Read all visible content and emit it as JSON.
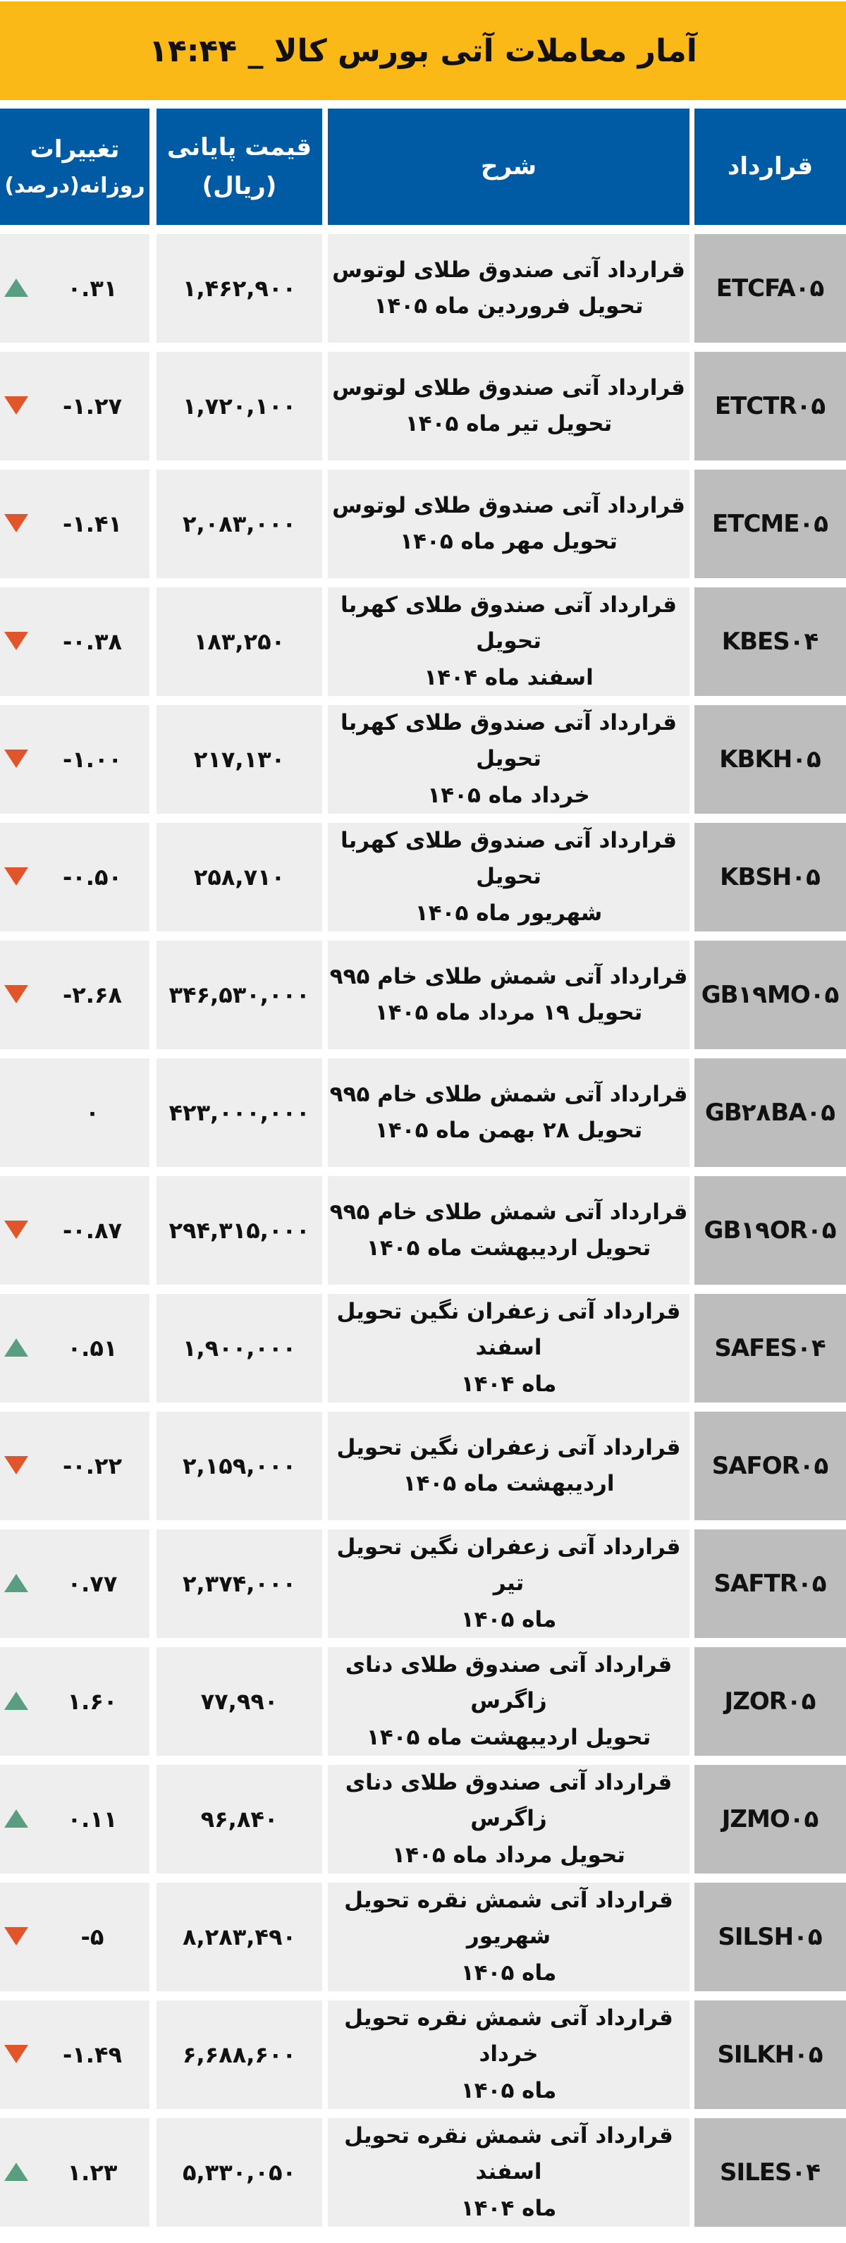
{
  "title": "آمار معاملات آتی بورس کالا _ ۱۴:۴۴",
  "colors": {
    "title_bg": "#FBB917",
    "header_bg": "#005BA4",
    "cell_bg": "#EEEEEE",
    "contract_bg": "#BDBDBD",
    "up": "#5A9E82",
    "down": "#E0562A"
  },
  "headers": {
    "contract": "قرارداد",
    "description": "شرح",
    "price": [
      "قیمت پایانی",
      "(ریال)"
    ],
    "change": [
      "تغییرات",
      "روزانه(درصد)"
    ]
  },
  "rows": [
    {
      "contract": "ETCFA۰۵",
      "desc": [
        "قرارداد آتی صندوق طلای لوتوس",
        "تحویل فروردین ماه ۱۴۰۵"
      ],
      "price": "۱,۴۶۲,۹۰۰",
      "change": "۰.۳۱",
      "trend": "up"
    },
    {
      "contract": "ETCTR۰۵",
      "desc": [
        "قرارداد آتی صندوق طلای لوتوس",
        "تحویل تیر ماه ۱۴۰۵"
      ],
      "price": "۱,۷۲۰,۱۰۰",
      "change": "-۱.۲۷",
      "trend": "down"
    },
    {
      "contract": "ETCME۰۵",
      "desc": [
        "قرارداد آتی صندوق طلای لوتوس",
        "تحویل مهر ماه ۱۴۰۵"
      ],
      "price": "۲,۰۸۳,۰۰۰",
      "change": "-۱.۴۱",
      "trend": "down"
    },
    {
      "contract": "KBES۰۴",
      "desc": [
        "قرارداد آتی صندوق طلای کهربا تحویل",
        "اسفند ماه ۱۴۰۴"
      ],
      "price": "۱۸۳,۲۵۰",
      "change": "-۰.۳۸",
      "trend": "down"
    },
    {
      "contract": "KBKH۰۵",
      "desc": [
        "قرارداد آتی صندوق طلای کهربا تحویل",
        "خرداد ماه ۱۴۰۵"
      ],
      "price": "۲۱۷,۱۳۰",
      "change": "-۱.۰۰",
      "trend": "down"
    },
    {
      "contract": "KBSH۰۵",
      "desc": [
        "قرارداد آتی صندوق طلای کهربا تحویل",
        "شهریور ماه ۱۴۰۵"
      ],
      "price": "۲۵۸,۷۱۰",
      "change": "-۰.۵۰",
      "trend": "down"
    },
    {
      "contract": "GB۱۹MO۰۵",
      "desc": [
        "قرارداد آتی شمش طلای خام ۹۹۵",
        "تحویل ۱۹ مرداد ماه ۱۴۰۵"
      ],
      "price": "۳۴۶,۵۳۰,۰۰۰",
      "change": "-۲.۶۸",
      "trend": "down"
    },
    {
      "contract": "GB۲۸BA۰۵",
      "desc": [
        "قرارداد آتی شمش طلای خام ۹۹۵",
        "تحویل ۲۸ بهمن ماه ۱۴۰۵"
      ],
      "price": "۴۲۳,۰۰۰,۰۰۰",
      "change": "۰",
      "trend": "none"
    },
    {
      "contract": "GB۱۹OR۰۵",
      "desc": [
        "قرارداد آتی شمش طلای خام ۹۹۵",
        "تحویل اردیبهشت ماه ۱۴۰۵"
      ],
      "price": "۲۹۴,۳۱۵,۰۰۰",
      "change": "-۰.۸۷",
      "trend": "down"
    },
    {
      "contract": "SAFES۰۴",
      "desc": [
        "قرارداد آتی زعفران نگین تحویل اسفند",
        "ماه ۱۴۰۴"
      ],
      "price": "۱,۹۰۰,۰۰۰",
      "change": "۰.۵۱",
      "trend": "up"
    },
    {
      "contract": "SAFOR۰۵",
      "desc": [
        "قرارداد آتی زعفران نگین تحویل",
        "اردیبهشت ماه ۱۴۰۵"
      ],
      "price": "۲,۱۵۹,۰۰۰",
      "change": "-۰.۲۲",
      "trend": "down"
    },
    {
      "contract": "SAFTR۰۵",
      "desc": [
        "قرارداد آتی زعفران نگین تحویل تیر",
        "ماه ۱۴۰۵"
      ],
      "price": "۲,۳۷۴,۰۰۰",
      "change": "۰.۷۷",
      "trend": "up"
    },
    {
      "contract": "JZOR۰۵",
      "desc": [
        "قرارداد آتی صندوق طلای دنای زاگرس",
        "تحویل اردیبهشت ماه ۱۴۰۵"
      ],
      "price": "۷۷,۹۹۰",
      "change": "۱.۶۰",
      "trend": "up"
    },
    {
      "contract": "JZMO۰۵",
      "desc": [
        "قرارداد آتی صندوق طلای دنای زاگرس",
        "تحویل مرداد ماه ۱۴۰۵"
      ],
      "price": "۹۶,۸۴۰",
      "change": "۰.۱۱",
      "trend": "up"
    },
    {
      "contract": "SILSH۰۵",
      "desc": [
        "قرارداد آتی شمش نقره تحویل شهریور",
        "ماه ۱۴۰۵"
      ],
      "price": "۸,۲۸۳,۴۹۰",
      "change": "-۵",
      "trend": "down"
    },
    {
      "contract": "SILKH۰۵",
      "desc": [
        "قرارداد آتی شمش نقره تحویل خرداد",
        "ماه ۱۴۰۵"
      ],
      "price": "۶,۶۸۸,۶۰۰",
      "change": "-۱.۴۹",
      "trend": "down"
    },
    {
      "contract": "SILES۰۴",
      "desc": [
        "قرارداد آتی شمش نقره تحویل اسفند",
        "ماه ۱۴۰۴"
      ],
      "price": "۵,۳۳۰,۰۵۰",
      "change": "۱.۲۳",
      "trend": "up"
    }
  ]
}
